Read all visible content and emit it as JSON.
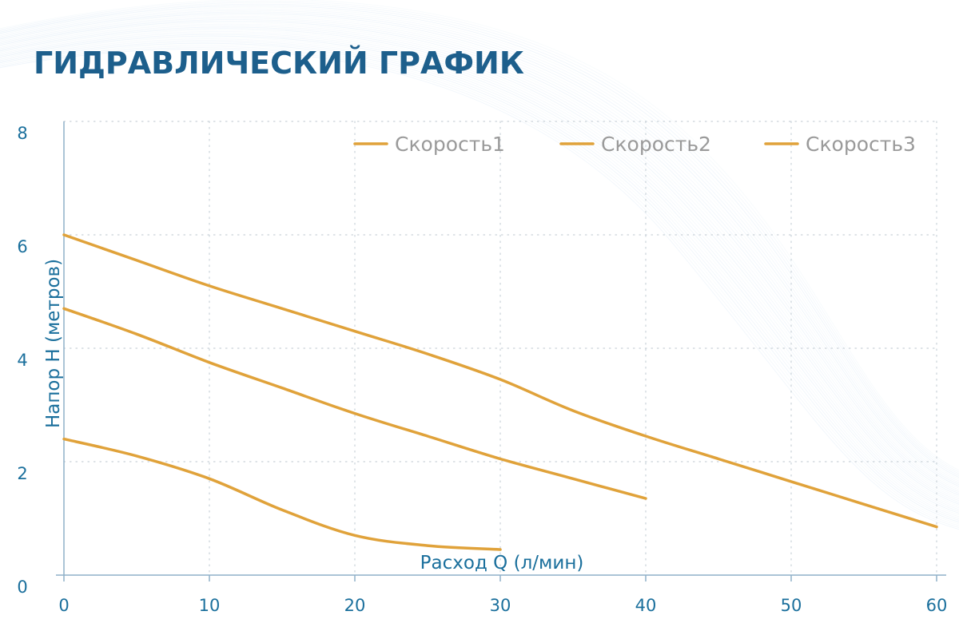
{
  "colors": {
    "title": "#1d5f8c",
    "axis_text": "#1a6f9c",
    "legend_text": "#9a9a9a",
    "series": "#e0a23a",
    "grid": "#c9d1d8",
    "axis_line": "#8fb0c8",
    "wave": "#b5d2ea"
  },
  "chart_data": {
    "type": "line",
    "title": "ГИДРАВЛИЧЕСКИЙ ГРАФИК",
    "xlabel": "Расход Q (л/мин)",
    "ylabel": "Напор H (метров)",
    "xlim": [
      0,
      60
    ],
    "ylim": [
      0,
      8
    ],
    "x_ticks": [
      0,
      10,
      20,
      30,
      40,
      50,
      60
    ],
    "y_ticks": [
      0,
      2,
      4,
      6,
      8
    ],
    "x_tick_labels": [
      "0",
      "10",
      "20",
      "30",
      "40",
      "50",
      "60"
    ],
    "y_tick_labels": [
      "0",
      "2",
      "4",
      "6",
      "8"
    ],
    "grid": true,
    "legend_position": "top-right",
    "series": [
      {
        "name": "Скорость1",
        "x": [
          0,
          5,
          10,
          15,
          20,
          25,
          30,
          35,
          40,
          45,
          50,
          55,
          60
        ],
        "y": [
          6.0,
          5.55,
          5.1,
          4.7,
          4.3,
          3.9,
          3.45,
          2.9,
          2.45,
          2.05,
          1.65,
          1.25,
          0.85
        ]
      },
      {
        "name": "Скорость2",
        "x": [
          0,
          5,
          10,
          15,
          20,
          25,
          30,
          35,
          40
        ],
        "y": [
          4.7,
          4.25,
          3.75,
          3.3,
          2.85,
          2.45,
          2.05,
          1.7,
          1.35
        ]
      },
      {
        "name": "Скорость3",
        "x": [
          0,
          5,
          10,
          15,
          20,
          25,
          30
        ],
        "y": [
          2.4,
          2.1,
          1.7,
          1.15,
          0.7,
          0.52,
          0.45
        ]
      }
    ]
  }
}
